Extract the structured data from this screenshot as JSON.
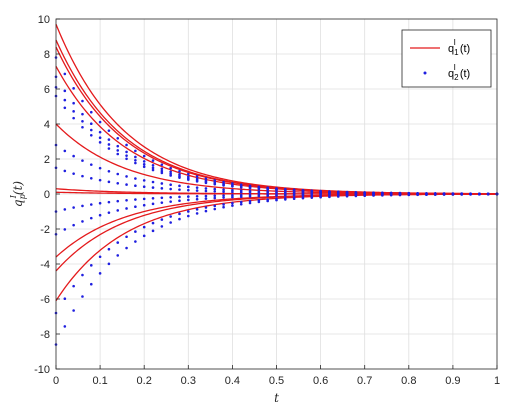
{
  "chart_data": {
    "type": "line",
    "xlabel": "t",
    "ylabel_main": "q",
    "ylabel_sup": "I",
    "ylabel_sub": "p",
    "ylabel_arg": "(t)",
    "xlim": [
      0,
      1
    ],
    "ylim": [
      -10,
      10
    ],
    "x_ticks": [
      "0",
      "0.1",
      "0.2",
      "0.3",
      "0.4",
      "0.5",
      "0.6",
      "0.7",
      "0.8",
      "0.9",
      "1"
    ],
    "y_ticks": [
      "-10",
      "-8",
      "-6",
      "-4",
      "-2",
      "0",
      "2",
      "4",
      "6",
      "8",
      "10"
    ],
    "grid": true,
    "legend_position": "top-right",
    "legend": [
      {
        "main": "q",
        "sup": "I",
        "sub": "1",
        "arg": "(t)",
        "style": "line",
        "color": "#e41a1c"
      },
      {
        "main": "q",
        "sup": "I",
        "sub": "2",
        "arg": "(t)",
        "style": "dots",
        "color": "#1f1fe0"
      }
    ],
    "decay_rate": 6.4,
    "x": [
      0,
      0.02,
      0.04,
      0.06,
      0.08,
      0.1,
      0.12,
      0.14,
      0.16,
      0.18,
      0.2,
      0.22,
      0.24,
      0.26,
      0.28,
      0.3,
      0.32,
      0.34,
      0.36,
      0.38,
      0.4,
      0.42,
      0.44,
      0.46,
      0.48,
      0.5,
      0.52,
      0.54,
      0.56,
      0.58,
      0.6,
      0.62,
      0.64,
      0.66,
      0.68,
      0.7,
      0.72,
      0.74,
      0.76,
      0.78,
      0.8,
      0.82,
      0.84,
      0.86,
      0.88,
      0.9,
      0.92,
      0.94,
      0.96,
      0.98,
      1
    ],
    "series": [
      {
        "name": "q1",
        "style": "line",
        "color": "#e41a1c",
        "initial_values": [
          9.7,
          8.8,
          8.4,
          7.3,
          4.0,
          0.3,
          0.1,
          -3.6,
          -4.4,
          -6.1
        ]
      },
      {
        "name": "q2",
        "style": "dots",
        "color": "#1f1fe0",
        "initial_values": [
          7.8,
          6.7,
          6.1,
          5.6,
          2.8,
          1.5,
          -1.0,
          -2.3,
          -6.8,
          -8.6
        ]
      }
    ]
  },
  "colors": {
    "grid": "#dfdfdf",
    "axis": "#262626",
    "legend_border": "#262626",
    "background": "#ffffff"
  }
}
